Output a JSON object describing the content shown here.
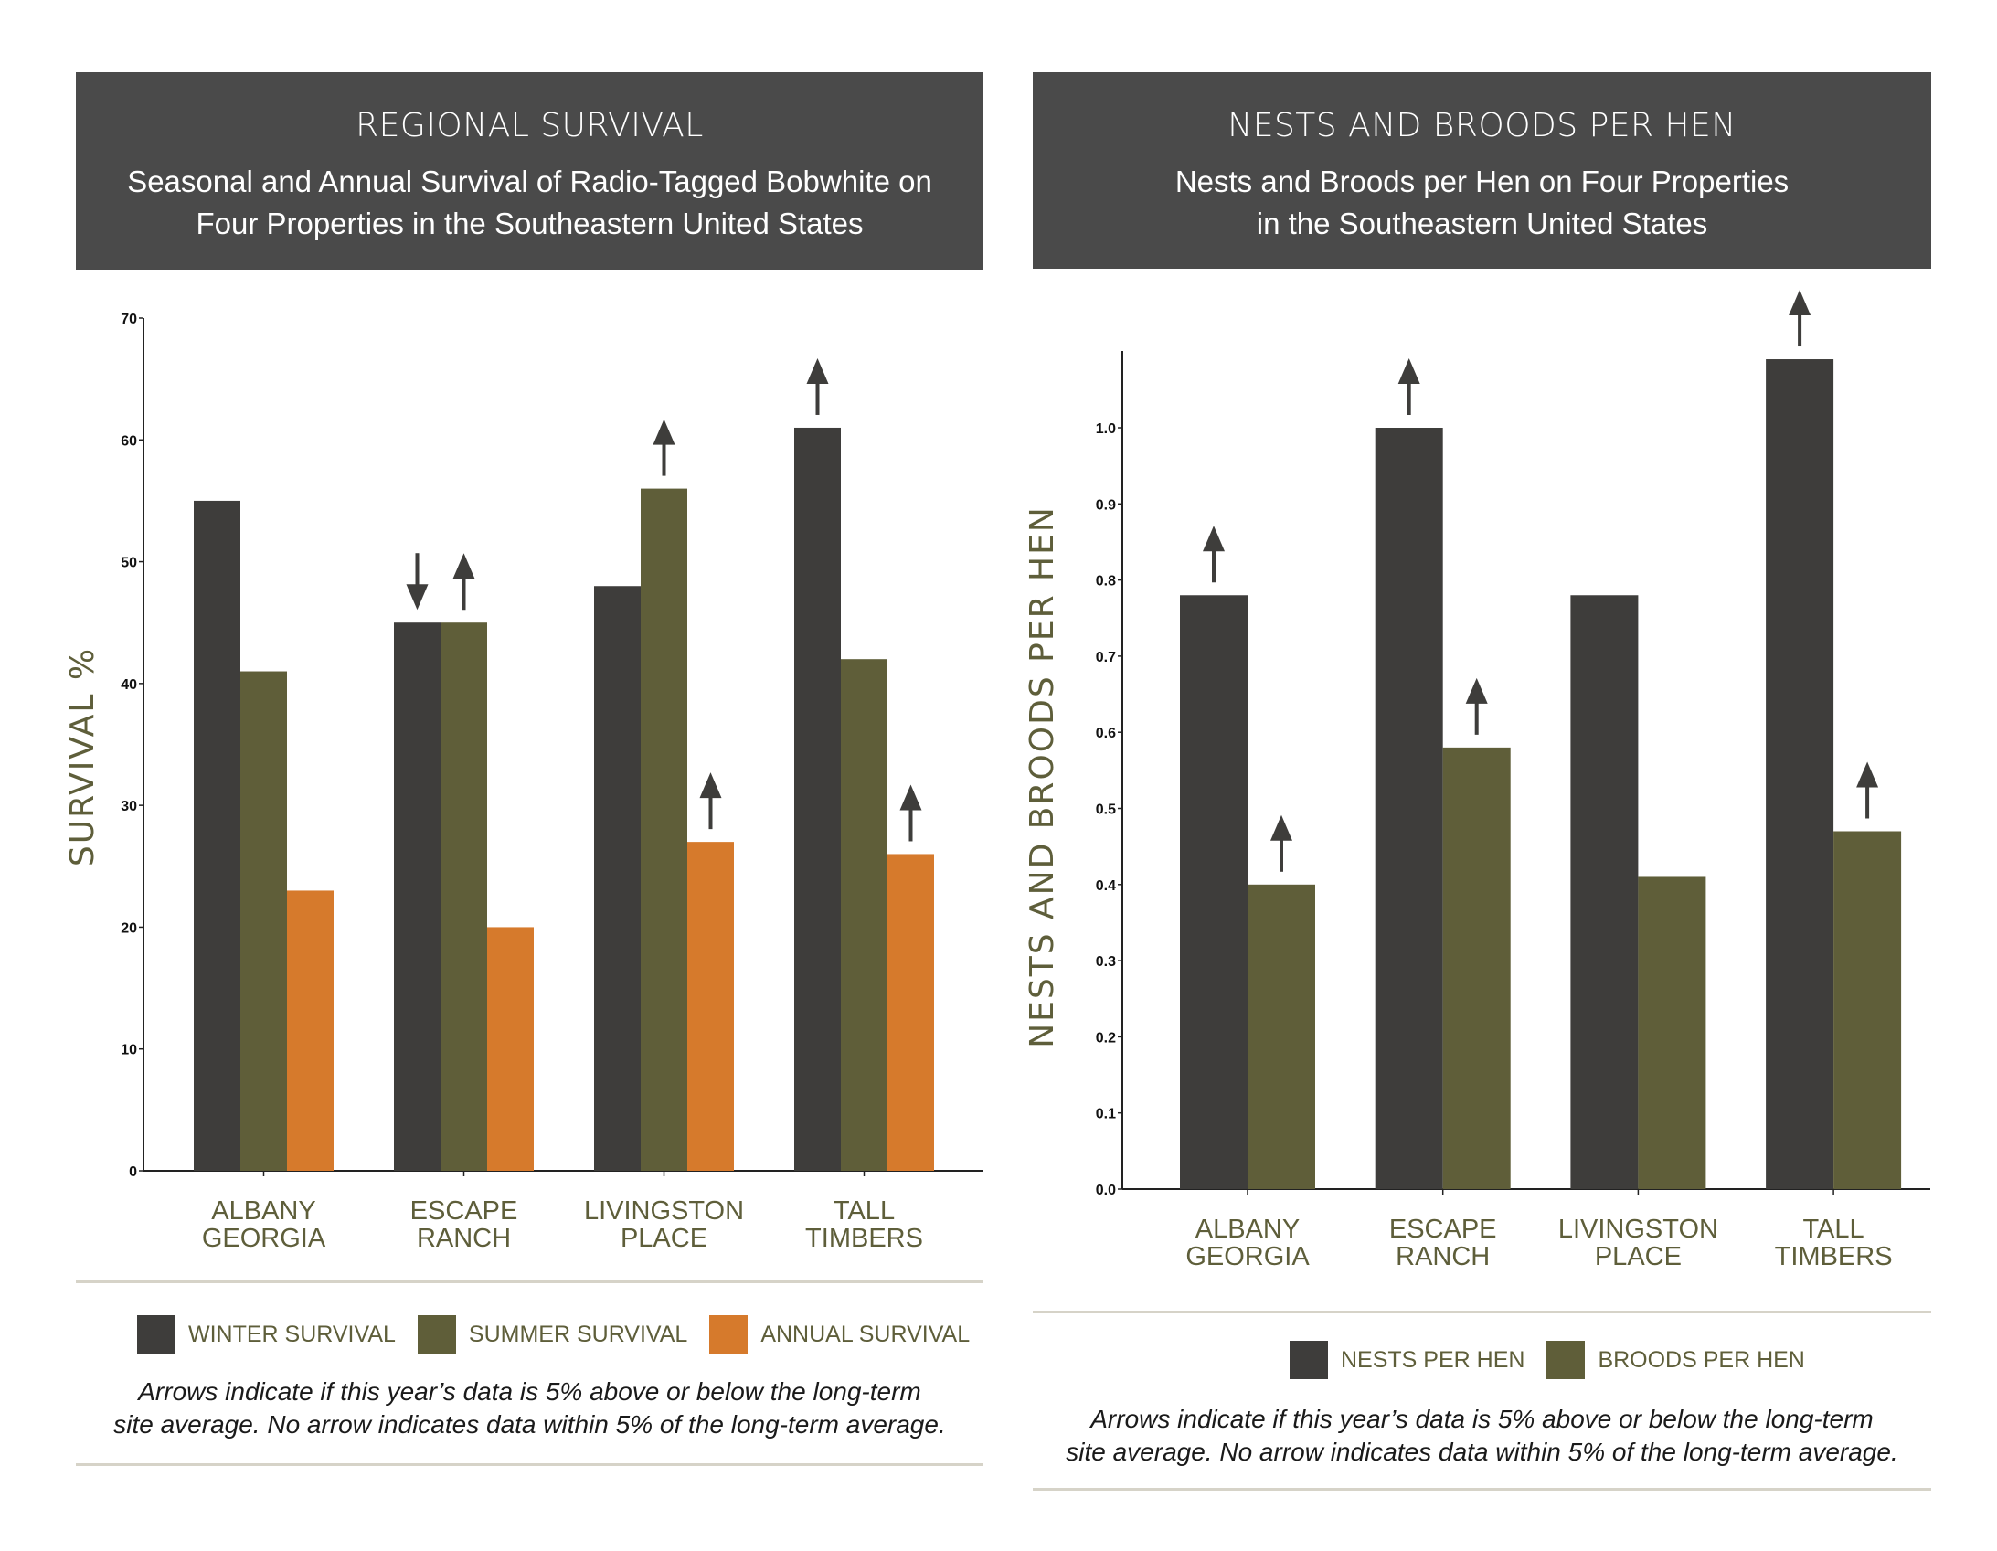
{
  "colors": {
    "header_bg": "#4a4a4a",
    "winter": "#3e3d3b",
    "summer": "#5f5e39",
    "annual": "#d67a2c",
    "arrow": "#3e3d3b",
    "label_olive": "#5e5e3a"
  },
  "left_panel": {
    "title": "REGIONAL SURVIVAL",
    "subtitle_line1": "Seasonal and Annual Survival of Radio-Tagged Bobwhite on",
    "subtitle_line2": "Four Properties in the Southeastern United States",
    "legend": [
      {
        "label": "WINTER SURVIVAL",
        "color": "#3e3d3b"
      },
      {
        "label": "SUMMER SURVIVAL",
        "color": "#5f5e39"
      },
      {
        "label": "ANNUAL SURVIVAL",
        "color": "#d67a2c"
      }
    ],
    "note_line1": "Arrows indicate if this year’s data is 5% above or below the long-term",
    "note_line2": "site average. No arrow indicates data within 5% of the long-term average."
  },
  "right_panel": {
    "title": "NESTS AND BROODS PER HEN",
    "subtitle_line1": "Nests and Broods per Hen on Four Properties",
    "subtitle_line2": "in the Southeastern United States",
    "legend": [
      {
        "label": "NESTS PER HEN",
        "color": "#3e3d3b"
      },
      {
        "label": "BROODS PER HEN",
        "color": "#5f5e39"
      }
    ],
    "note_line1": "Arrows indicate if this year’s data is 5% above or below the long-term",
    "note_line2": "site average. No arrow indicates data within 5% of the long-term average."
  },
  "chart_data": [
    {
      "type": "bar",
      "title": "REGIONAL SURVIVAL",
      "xlabel": "",
      "ylabel": "SURVIVAL %",
      "ylim": [
        0,
        70
      ],
      "yticks": [
        "0",
        "10",
        "20",
        "30",
        "40",
        "50",
        "60",
        "70"
      ],
      "ytick_values": [
        0,
        10,
        20,
        30,
        40,
        50,
        60,
        70
      ],
      "categories": [
        [
          "ALBANY",
          "GEORGIA"
        ],
        [
          "ESCAPE",
          "RANCH"
        ],
        [
          "LIVINGSTON",
          "PLACE"
        ],
        [
          "TALL",
          "TIMBERS"
        ]
      ],
      "series": [
        {
          "name": "WINTER SURVIVAL",
          "color": "#3e3d3b",
          "values": [
            55,
            45,
            48,
            61
          ],
          "arrows": [
            "none",
            "down",
            "none",
            "up"
          ]
        },
        {
          "name": "SUMMER SURVIVAL",
          "color": "#5f5e39",
          "values": [
            41,
            45,
            56,
            42
          ],
          "arrows": [
            "none",
            "up",
            "up",
            "none"
          ]
        },
        {
          "name": "ANNUAL SURVIVAL",
          "color": "#d67a2c",
          "values": [
            23,
            20,
            27,
            26
          ],
          "arrows": [
            "none",
            "none",
            "up",
            "up"
          ]
        }
      ],
      "grid": false,
      "legend_position": "bottom"
    },
    {
      "type": "bar",
      "title": "NESTS AND BROODS PER HEN",
      "xlabel": "",
      "ylabel": "NESTS AND BROODS PER HEN",
      "ylim": [
        0,
        1.1
      ],
      "yticks": [
        "0.0",
        "0.1",
        "0.2",
        "0.3",
        "0.4",
        "0.5",
        "0.6",
        "0.7",
        "0.8",
        "0.9",
        "1.0"
      ],
      "ytick_values": [
        0,
        0.1,
        0.2,
        0.3,
        0.4,
        0.5,
        0.6,
        0.7,
        0.8,
        0.9,
        1.0
      ],
      "categories": [
        [
          "ALBANY",
          "GEORGIA"
        ],
        [
          "ESCAPE",
          "RANCH"
        ],
        [
          "LIVINGSTON",
          "PLACE"
        ],
        [
          "TALL",
          "TIMBERS"
        ]
      ],
      "series": [
        {
          "name": "NESTS PER HEN",
          "color": "#3e3d3b",
          "values": [
            0.78,
            1.0,
            0.78,
            1.09
          ],
          "arrows": [
            "up",
            "up",
            "none",
            "up"
          ]
        },
        {
          "name": "BROODS PER HEN",
          "color": "#5f5e39",
          "values": [
            0.4,
            0.58,
            0.41,
            0.47
          ],
          "arrows": [
            "up",
            "up",
            "none",
            "up"
          ]
        }
      ],
      "grid": false,
      "legend_position": "bottom"
    }
  ]
}
